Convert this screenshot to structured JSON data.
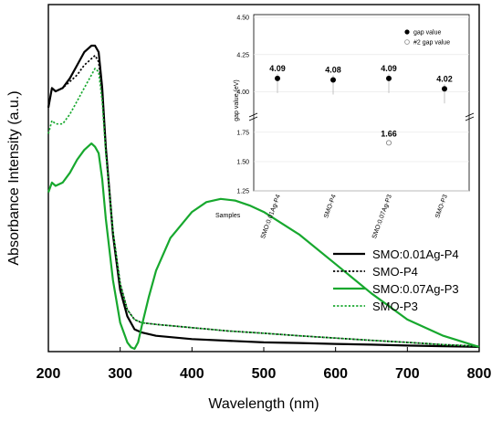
{
  "chart_data": [
    {
      "type": "line",
      "xlabel": "Wavelength (nm)",
      "ylabel": "Absorbance Intensity (a.u.)",
      "xlim": [
        200,
        800
      ],
      "xticks": [
        "200",
        "300",
        "400",
        "500",
        "600",
        "700",
        "800"
      ],
      "legend_placement": "right",
      "series": [
        {
          "name": "SMO:0.01Ag-P4",
          "color": "#000000",
          "style": "solid",
          "x": [
            200,
            205,
            210,
            220,
            230,
            240,
            250,
            260,
            265,
            270,
            275,
            280,
            290,
            300,
            310,
            320,
            330,
            350,
            400,
            450,
            500,
            550,
            600,
            650,
            700,
            750,
            800
          ],
          "y": [
            0.74,
            0.8,
            0.79,
            0.8,
            0.83,
            0.87,
            0.91,
            0.93,
            0.93,
            0.91,
            0.8,
            0.62,
            0.35,
            0.18,
            0.1,
            0.06,
            0.05,
            0.04,
            0.03,
            0.025,
            0.02,
            0.018,
            0.015,
            0.013,
            0.01,
            0.008,
            0.006
          ]
        },
        {
          "name": "SMO-P4",
          "color": "#000000",
          "style": "dotted",
          "x": [
            200,
            205,
            210,
            220,
            230,
            240,
            250,
            260,
            265,
            270,
            275,
            280,
            290,
            300,
            310,
            320,
            330,
            350,
            400,
            450,
            500,
            550,
            600,
            650,
            700,
            750,
            800
          ],
          "y": [
            0.74,
            0.8,
            0.79,
            0.8,
            0.82,
            0.84,
            0.87,
            0.89,
            0.9,
            0.88,
            0.78,
            0.61,
            0.36,
            0.2,
            0.12,
            0.09,
            0.08,
            0.075,
            0.065,
            0.055,
            0.048,
            0.04,
            0.033,
            0.026,
            0.02,
            0.013,
            0.008
          ]
        },
        {
          "name": "SMO:0.07Ag-P3",
          "color": "#17a82e",
          "style": "solid",
          "x": [
            200,
            205,
            210,
            220,
            230,
            240,
            250,
            260,
            265,
            270,
            275,
            280,
            290,
            300,
            310,
            315,
            320,
            325,
            330,
            340,
            350,
            370,
            400,
            420,
            440,
            460,
            480,
            500,
            550,
            600,
            650,
            700,
            750,
            800
          ],
          "y": [
            0.48,
            0.51,
            0.5,
            0.51,
            0.54,
            0.58,
            0.61,
            0.63,
            0.62,
            0.6,
            0.52,
            0.4,
            0.21,
            0.08,
            0.02,
            0.005,
            0.0,
            0.02,
            0.07,
            0.16,
            0.24,
            0.34,
            0.42,
            0.45,
            0.46,
            0.455,
            0.44,
            0.42,
            0.35,
            0.26,
            0.17,
            0.09,
            0.04,
            0.006
          ]
        },
        {
          "name": "SMO-P3",
          "color": "#17a82e",
          "style": "dotted",
          "x": [
            200,
            205,
            210,
            220,
            230,
            240,
            250,
            260,
            265,
            270,
            275,
            280,
            290,
            300,
            310,
            320,
            330,
            350,
            400,
            450,
            500,
            550,
            600,
            650,
            700,
            750,
            800
          ],
          "y": [
            0.66,
            0.7,
            0.69,
            0.69,
            0.72,
            0.76,
            0.8,
            0.84,
            0.86,
            0.85,
            0.76,
            0.6,
            0.36,
            0.2,
            0.12,
            0.09,
            0.08,
            0.075,
            0.065,
            0.055,
            0.048,
            0.04,
            0.033,
            0.026,
            0.02,
            0.013,
            0.008
          ]
        }
      ]
    },
    {
      "type": "scatter",
      "ylabel": "gap value (eV)",
      "xlabel": "Samples",
      "categories": [
        "SMO:0.01Ag-P4",
        "SMO-P4",
        "SMO:0.07Ag-P3",
        "SMO-P3"
      ],
      "yticks_upper": [
        "4.50",
        "4.25",
        "4.00"
      ],
      "yticks_lower": [
        "1.75",
        "1.50",
        "1.25"
      ],
      "ylim_upper": [
        3.85,
        4.5
      ],
      "ylim_lower": [
        1.25,
        1.85
      ],
      "axis_break": true,
      "grid": true,
      "legend_placement": "top-right",
      "series": [
        {
          "name": "gap value",
          "marker": "filled-circle",
          "values": [
            4.09,
            4.08,
            4.09,
            4.02
          ],
          "labels": [
            "4.09",
            "4.08",
            "4.09",
            "4.02"
          ]
        },
        {
          "name": "#2 gap value",
          "marker": "open-circle",
          "values": [
            null,
            null,
            1.66,
            null
          ],
          "labels": [
            "",
            "",
            "1.66",
            ""
          ]
        }
      ]
    }
  ]
}
